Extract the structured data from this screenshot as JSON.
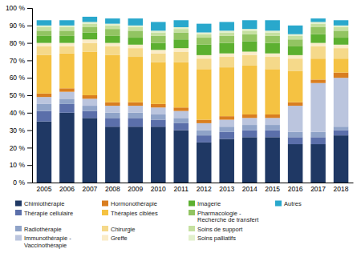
{
  "chart_data": {
    "type": "bar",
    "stacked": true,
    "grid": false,
    "legend": "bottom",
    "categories": [
      2005,
      2006,
      2007,
      2008,
      2009,
      2010,
      2011,
      2012,
      2013,
      2014,
      2015,
      2016,
      2017,
      2018
    ],
    "ylim": [
      0,
      100
    ],
    "yticks": [
      {
        "value": 0,
        "label": "0 %"
      },
      {
        "value": 10,
        "label": "10 %"
      },
      {
        "value": 20,
        "label": "20 %"
      },
      {
        "value": 30,
        "label": "30 %"
      },
      {
        "value": 40,
        "label": "40 %"
      },
      {
        "value": 50,
        "label": "50 %"
      },
      {
        "value": 60,
        "label": "60 %"
      },
      {
        "value": 70,
        "label": "70 %"
      },
      {
        "value": 80,
        "label": "80 %"
      },
      {
        "value": 90,
        "label": "90 %"
      },
      {
        "value": 100,
        "label": "100 %"
      }
    ],
    "series": [
      {
        "name": "Chimiothérapie",
        "color": "#1f3864",
        "values": [
          35,
          40,
          37,
          32,
          32,
          32,
          30,
          23,
          25,
          26,
          26,
          22,
          22,
          27
        ]
      },
      {
        "name": "Thérapie cellulaire",
        "color": "#5b6faa",
        "values": [
          6,
          5,
          4,
          5,
          5,
          4,
          4,
          4,
          4,
          4,
          4,
          4,
          4,
          3
        ]
      },
      {
        "name": "Radiothérapie",
        "color": "#8fa3c8",
        "values": [
          4,
          3,
          3,
          3,
          3,
          3,
          3,
          3,
          3,
          3,
          3,
          3,
          3,
          2
        ]
      },
      {
        "name": "Immunothérapie -\nVaccinothérapie",
        "color": "#bbc5de",
        "values": [
          4,
          4,
          4,
          4,
          4,
          4,
          4,
          4,
          4,
          4,
          4,
          15,
          28,
          28
        ]
      },
      {
        "name": "Hormonothérapie",
        "color": "#d97e20",
        "values": [
          2,
          2,
          2,
          2,
          2,
          2,
          2,
          2,
          2,
          2,
          2,
          2,
          2,
          3
        ]
      },
      {
        "name": "Thérapies ciblées",
        "color": "#f5c242",
        "values": [
          22,
          20,
          25,
          27,
          26,
          24,
          26,
          29,
          28,
          28,
          26,
          18,
          12,
          8
        ]
      },
      {
        "name": "Chirurgie",
        "color": "#f5d98a",
        "values": [
          5,
          4,
          5,
          5,
          5,
          5,
          6,
          6,
          6,
          6,
          7,
          7,
          7,
          6
        ]
      },
      {
        "name": "Greffe",
        "color": "#faecc8",
        "values": [
          2,
          2,
          2,
          2,
          2,
          2,
          2,
          2,
          2,
          2,
          2,
          2,
          2,
          2
        ]
      },
      {
        "name": "Imagerie",
        "color": "#5cb030",
        "values": [
          4,
          4,
          4,
          4,
          4,
          4,
          5,
          6,
          6,
          6,
          6,
          5,
          5,
          4
        ]
      },
      {
        "name": "Pharmacologie -\nRecherche de transfert",
        "color": "#92c462",
        "values": [
          3,
          3,
          3,
          4,
          4,
          4,
          4,
          4,
          4,
          4,
          4,
          4,
          4,
          4
        ]
      },
      {
        "name": "Soins de support",
        "color": "#c5e0a0",
        "values": [
          2,
          2,
          2,
          2,
          2,
          2,
          2,
          2,
          2,
          2,
          2,
          2,
          2,
          2
        ]
      },
      {
        "name": "Soins palliatifs",
        "color": "#e2f0cc",
        "values": [
          1,
          1,
          1,
          1,
          1,
          1,
          1,
          1,
          1,
          1,
          1,
          1,
          1,
          1
        ]
      },
      {
        "name": "Autres",
        "color": "#29a8cc",
        "values": [
          3,
          3,
          3,
          3,
          4,
          5,
          4,
          5,
          5,
          5,
          6,
          5,
          2,
          3
        ]
      }
    ]
  }
}
